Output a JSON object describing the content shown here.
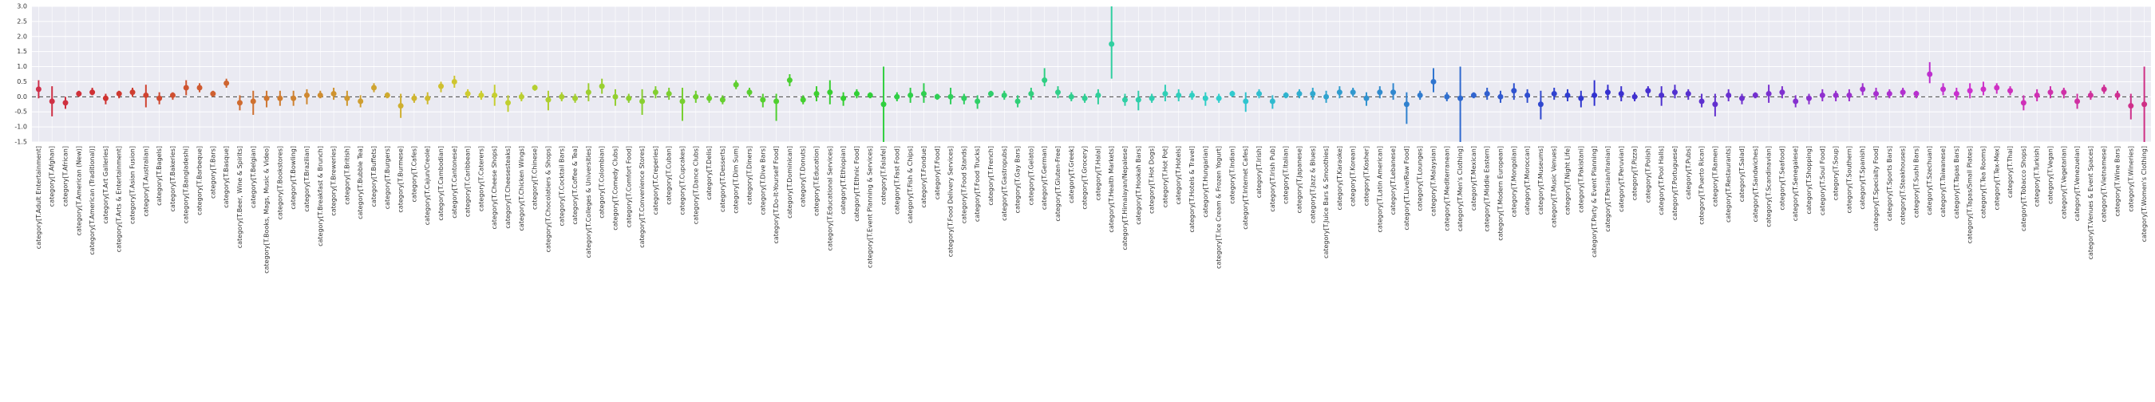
{
  "chart_data": {
    "type": "pointplot",
    "palette": "husl",
    "grid": true,
    "hline": 0,
    "ylim": [
      -1.5,
      3
    ],
    "yticks": [
      {
        "value": -1.5,
        "label": "-1.5"
      },
      {
        "value": -1,
        "label": "-1.0"
      },
      {
        "value": -0.5,
        "label": "-0.5"
      },
      {
        "value": 0,
        "label": "0.0"
      },
      {
        "value": 0.5,
        "label": "0.5"
      },
      {
        "value": 1,
        "label": "1.0"
      },
      {
        "value": 1.5,
        "label": "1.5"
      },
      {
        "value": 2,
        "label": "2.0"
      },
      {
        "value": 2.5,
        "label": "2.5"
      },
      {
        "value": 3,
        "label": "3.0"
      }
    ],
    "categories": [
      "category[T.Adult Entertainment]",
      "category[T.Afghan]",
      "category[T.African]",
      "category[T.American (New)]",
      "category[T.American (Traditional)]",
      "category[T.Art Galleries]",
      "category[T.Arts & Entertainment]",
      "category[T.Asian Fusion]",
      "category[T.Australian]",
      "category[T.Bagels]",
      "category[T.Bakeries]",
      "category[T.Bangladeshi]",
      "category[T.Barbeque]",
      "category[T.Bars]",
      "category[T.Basque]",
      "category[T.Beer, Wine & Spirits]",
      "category[T.Belgian]",
      "category[T.Books, Mags, Music & Video]",
      "category[T.Bookstores]",
      "category[T.Bowling]",
      "category[T.Brazilian]",
      "category[T.Breakfast & Brunch]",
      "category[T.Breweries]",
      "category[T.British]",
      "category[T.Bubble Tea]",
      "category[T.Buffets]",
      "category[T.Burgers]",
      "category[T.Burmese]",
      "category[T.Cafes]",
      "category[T.Cajun/Creole]",
      "category[T.Cambodian]",
      "category[T.Cantonese]",
      "category[T.Caribbean]",
      "category[T.Caterers]",
      "category[T.Cheese Shops]",
      "category[T.Cheesesteaks]",
      "category[T.Chicken Wings]",
      "category[T.Chinese]",
      "category[T.Chocolatiers & Shops]",
      "category[T.Cocktail Bars]",
      "category[T.Coffee & Tea]",
      "category[T.Colleges & Universities]",
      "category[T.Colombian]",
      "category[T.Comedy Clubs]",
      "category[T.Comfort Food]",
      "category[T.Convenience Stores]",
      "category[T.Creperies]",
      "category[T.Cuban]",
      "category[T.Cupcakes]",
      "category[T.Dance Clubs]",
      "category[T.Delis]",
      "category[T.Desserts]",
      "category[T.Dim Sum]",
      "category[T.Diners]",
      "category[T.Dive Bars]",
      "category[T.Do-It-Yourself Food]",
      "category[T.Dominican]",
      "category[T.Donuts]",
      "category[T.Education]",
      "category[T.Educational Services]",
      "category[T.Ethiopian]",
      "category[T.Ethnic Food]",
      "category[T.Event Planning & Services]",
      "category[T.Falafel]",
      "category[T.Fast Food]",
      "category[T.Fish & Chips]",
      "category[T.Fondue]",
      "category[T.Food]",
      "category[T.Food Delivery Services]",
      "category[T.Food Stands]",
      "category[T.Food Trucks]",
      "category[T.French]",
      "category[T.Gastropubs]",
      "category[T.Gay Bars]",
      "category[T.Gelato]",
      "category[T.German]",
      "category[T.Gluten-Free]",
      "category[T.Greek]",
      "category[T.Grocery]",
      "category[T.Halal]",
      "category[T.Health Markets]",
      "category[T.Himalayan/Nepalese]",
      "category[T.Hookah Bars]",
      "category[T.Hot Dogs]",
      "category[T.Hot Pot]",
      "category[T.Hotels]",
      "category[T.Hotels & Travel]",
      "category[T.Hungarian]",
      "category[T.Ice Cream & Frozen Yogurt]",
      "category[T.Indian]",
      "category[T.Internet Cafes]",
      "category[T.Irish]",
      "category[T.Irish Pub]",
      "category[T.Italian]",
      "category[T.Japanese]",
      "category[T.Jazz & Blues]",
      "category[T.Juice Bars & Smoothies]",
      "category[T.Karaoke]",
      "category[T.Korean]",
      "category[T.Kosher]",
      "category[T.Latin American]",
      "category[T.Lebanese]",
      "category[T.Live/Raw Food]",
      "category[T.Lounges]",
      "category[T.Malaysian]",
      "category[T.Mediterranean]",
      "category[T.Men's Clothing]",
      "category[T.Mexican]",
      "category[T.Middle Eastern]",
      "category[T.Modern European]",
      "category[T.Mongolian]",
      "category[T.Moroccan]",
      "category[T.Museums]",
      "category[T.Music Venues]",
      "category[T.Night Life]",
      "category[T.Pakistani]",
      "category[T.Party & Event Planning]",
      "category[T.Persian/Iranian]",
      "category[T.Peruvian]",
      "category[T.Pizza]",
      "category[T.Polish]",
      "category[T.Pool Halls]",
      "category[T.Portuguese]",
      "category[T.Pubs]",
      "category[T.Puerto Rican]",
      "category[T.Ramen]",
      "category[T.Restaurants]",
      "category[T.Salad]",
      "category[T.Sandwiches]",
      "category[T.Scandinavian]",
      "category[T.Seafood]",
      "category[T.Senegalese]",
      "category[T.Shopping]",
      "category[T.Soul Food]",
      "category[T.Soup]",
      "category[T.Southern]",
      "category[T.Spanish]",
      "category[T.Specialty Food]",
      "category[T.Sports Bars]",
      "category[T.Steakhouses]",
      "category[T.Sushi Bars]",
      "category[T.Szechuan]",
      "category[T.Taiwanese]",
      "category[T.Tapas Bars]",
      "category[T.Tapas/Small Plates]",
      "category[T.Tea Rooms]",
      "category[T.Tex-Mex]",
      "category[T.Thai]",
      "category[T.Tobacco Shops]",
      "category[T.Turkish]",
      "category[T.Vegan]",
      "category[T.Vegetarian]",
      "category[T.Venezuelan]",
      "category[T.Venues & Event Spaces]",
      "category[T.Vietnamese]",
      "category[T.Wine Bars]",
      "category[T.Wineries]",
      "category[T.Women's Clothing]"
    ],
    "values": [
      0.25,
      -0.15,
      -0.2,
      0.1,
      0.15,
      -0.05,
      0.1,
      0.15,
      0.05,
      -0.05,
      0.05,
      0.3,
      0.3,
      0.1,
      0.45,
      -0.2,
      -0.15,
      -0.05,
      -0.05,
      -0.05,
      0.05,
      0.05,
      0.1,
      -0.05,
      -0.15,
      0.3,
      0.05,
      -0.3,
      -0.05,
      -0.05,
      0.35,
      0.5,
      0.1,
      0.05,
      0.05,
      -0.2,
      0,
      0.3,
      -0.1,
      0,
      -0.05,
      0.15,
      0.35,
      0,
      -0.05,
      -0.15,
      0.15,
      0.1,
      -0.15,
      0,
      -0.05,
      -0.1,
      0.4,
      0.15,
      -0.1,
      -0.15,
      0.55,
      -0.1,
      0.1,
      0.15,
      -0.05,
      0.1,
      0.05,
      -0.25,
      0,
      0.05,
      0.1,
      0,
      0,
      -0.05,
      -0.15,
      0.1,
      0.05,
      -0.15,
      0.1,
      0.55,
      0.15,
      0,
      -0.05,
      0.05,
      1.75,
      -0.1,
      -0.1,
      -0.05,
      0.1,
      0.05,
      0.05,
      -0.05,
      -0.05,
      0.1,
      -0.15,
      0.1,
      -0.15,
      0.05,
      0.1,
      0.1,
      0,
      0.15,
      0.15,
      -0.05,
      0.15,
      0.15,
      -0.25,
      0.05,
      0.5,
      0,
      -0.05,
      0.05,
      0.1,
      0,
      0.2,
      0.05,
      -0.25,
      0.1,
      0.05,
      -0.05,
      0.05,
      0.15,
      0.1,
      0,
      0.2,
      0.05,
      0.15,
      0.1,
      -0.15,
      -0.25,
      0.05,
      -0.05,
      0.05,
      0.1,
      0.15,
      -0.15,
      -0.05,
      0.05,
      0.05,
      0.05,
      0.25,
      0.1,
      0.1,
      0.15,
      0.1,
      0.75,
      0.25,
      0.1,
      0.2,
      0.25,
      0.3,
      0.2,
      -0.2,
      0.05,
      0.15,
      0.15,
      -0.15,
      0.05,
      0.25,
      0.05,
      -0.3,
      -0.25
    ],
    "ci_low": [
      -0.05,
      -0.65,
      -0.4,
      0,
      0.05,
      -0.25,
      -0.05,
      0,
      -0.35,
      -0.25,
      -0.1,
      0.05,
      0.15,
      0,
      0.3,
      -0.45,
      -0.6,
      -0.35,
      -0.3,
      -0.3,
      -0.25,
      -0.05,
      -0.1,
      -0.3,
      -0.35,
      0.15,
      -0.05,
      -0.7,
      -0.2,
      -0.25,
      0.15,
      0.3,
      -0.05,
      -0.1,
      -0.3,
      -0.5,
      -0.15,
      0.2,
      -0.45,
      -0.15,
      -0.2,
      -0.15,
      0.1,
      -0.3,
      -0.2,
      -0.6,
      -0.05,
      -0.1,
      -0.8,
      -0.2,
      -0.2,
      -0.25,
      0.25,
      0,
      -0.35,
      -0.8,
      0.35,
      -0.25,
      -0.15,
      -0.25,
      -0.3,
      -0.05,
      -0.05,
      -1.6,
      -0.15,
      -0.2,
      -0.2,
      -0.1,
      -0.25,
      -0.25,
      -0.4,
      0,
      -0.1,
      -0.35,
      -0.1,
      0.35,
      -0.05,
      -0.15,
      -0.2,
      -0.25,
      0.6,
      -0.3,
      -0.45,
      -0.2,
      -0.15,
      -0.15,
      -0.1,
      -0.3,
      -0.2,
      0,
      -0.5,
      -0.05,
      -0.4,
      -0.05,
      -0.05,
      -0.1,
      -0.2,
      -0.05,
      0,
      -0.3,
      -0.05,
      -0.1,
      -0.9,
      -0.1,
      0.15,
      -0.15,
      -1.6,
      -0.05,
      -0.1,
      -0.2,
      -0.1,
      -0.2,
      -0.75,
      -0.1,
      -0.15,
      -0.35,
      -0.3,
      -0.1,
      -0.15,
      -0.15,
      0,
      -0.3,
      -0.05,
      -0.1,
      -0.35,
      -0.65,
      -0.15,
      -0.25,
      -0.05,
      -0.2,
      -0.05,
      -0.35,
      -0.25,
      -0.15,
      -0.15,
      -0.15,
      0.05,
      -0.1,
      -0.05,
      0,
      -0.05,
      0.45,
      0.05,
      -0.1,
      -0.05,
      0.05,
      0.1,
      0.05,
      -0.45,
      -0.15,
      -0.05,
      -0.05,
      -0.4,
      -0.1,
      0.1,
      -0.1,
      -0.75,
      -1.6
    ],
    "ci_high": [
      0.55,
      0.35,
      0,
      0.2,
      0.3,
      0.1,
      0.2,
      0.3,
      0.4,
      0.15,
      0.15,
      0.55,
      0.45,
      0.2,
      0.6,
      0.05,
      0.2,
      0.2,
      0.2,
      0.2,
      0.25,
      0.2,
      0.3,
      0.2,
      0.05,
      0.45,
      0.15,
      0.1,
      0.1,
      0.15,
      0.5,
      0.7,
      0.25,
      0.2,
      0.4,
      0.05,
      0.15,
      0.4,
      0.2,
      0.15,
      0.1,
      0.45,
      0.6,
      0.25,
      0.1,
      0.25,
      0.35,
      0.3,
      0.3,
      0.2,
      0.1,
      0.05,
      0.55,
      0.3,
      0.1,
      0.1,
      0.75,
      0.05,
      0.35,
      0.55,
      0.15,
      0.25,
      0.15,
      1,
      0.15,
      0.3,
      0.45,
      0.1,
      0.3,
      0.1,
      0.05,
      0.2,
      0.2,
      0.05,
      0.3,
      0.95,
      0.35,
      0.15,
      0.1,
      0.25,
      3.05,
      0.1,
      0.2,
      0.1,
      0.4,
      0.25,
      0.2,
      0.15,
      0.1,
      0.2,
      0.15,
      0.25,
      0.05,
      0.15,
      0.25,
      0.3,
      0.2,
      0.35,
      0.3,
      0.15,
      0.35,
      0.45,
      0.15,
      0.2,
      0.95,
      0.15,
      1,
      0.15,
      0.3,
      0.2,
      0.45,
      0.25,
      0.2,
      0.3,
      0.25,
      0.2,
      0.55,
      0.4,
      0.35,
      0.15,
      0.35,
      0.35,
      0.4,
      0.25,
      0.1,
      0.1,
      0.25,
      0.1,
      0.15,
      0.4,
      0.35,
      0.05,
      0.1,
      0.25,
      0.2,
      0.25,
      0.45,
      0.3,
      0.25,
      0.3,
      0.2,
      1.15,
      0.45,
      0.3,
      0.45,
      0.5,
      0.45,
      0.35,
      0.05,
      0.25,
      0.35,
      0.3,
      0.1,
      0.2,
      0.4,
      0.2,
      0.1,
      1
    ]
  }
}
